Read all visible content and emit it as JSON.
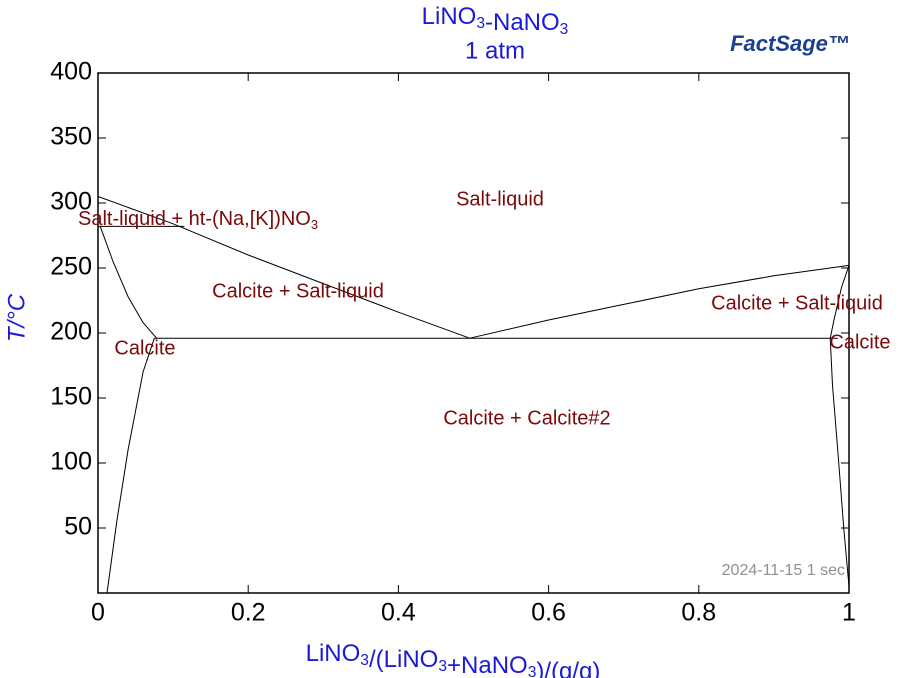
{
  "chart_data": {
    "type": "line",
    "title": "LiNO3-NaNO3",
    "subtitle": "1 atm",
    "logo": "FactSage™",
    "x_label": "LiNO3/(LiNO3+NaNO3)/(g/g)",
    "y_label": "T/°C",
    "timestamp": "2024-11-15  1 sec",
    "xlim": [
      0,
      1
    ],
    "ylim": [
      0,
      400
    ],
    "xticks": [
      0,
      0.2,
      0.4,
      0.6,
      0.8,
      1
    ],
    "yticks": [
      50,
      100,
      150,
      200,
      250,
      300,
      350,
      400
    ],
    "annotations": [
      "Salt-liquid",
      "Salt-liquid + ht-(Na,[K])NO3",
      "Calcite + Salt-liquid",
      "Calcite + Salt-liquid",
      "Calcite",
      "Calcite",
      "Calcite + Calcite#2"
    ],
    "series": [
      {
        "color": "#000000",
        "x": [
          0,
          0.1,
          0.2,
          0.3,
          0.4,
          0.495
        ],
        "values": [
          305,
          284,
          260,
          238,
          216,
          196
        ]
      },
      {
        "color": "#000000",
        "x": [
          0.495,
          0.6,
          0.7,
          0.8,
          0.9,
          1
        ],
        "values": [
          196,
          210,
          222,
          234,
          244,
          252
        ]
      },
      {
        "color": "#000000",
        "x": [
          0.075,
          0.985
        ],
        "values": [
          196,
          196
        ]
      },
      {
        "color": "#000000",
        "x": [
          0,
          0.115
        ],
        "values": [
          282,
          282
        ]
      },
      {
        "color": "#000000",
        "x": [
          0.003,
          0.02,
          0.04,
          0.06,
          0.078
        ],
        "values": [
          282,
          255,
          228,
          208,
          196
        ]
      },
      {
        "color": "#000000",
        "x": [
          0.075,
          0.06,
          0.04,
          0.025,
          0.012
        ],
        "values": [
          196,
          170,
          110,
          55,
          0
        ]
      },
      {
        "color": "#000000",
        "x": [
          1,
          0.99,
          0.98,
          0.975
        ],
        "values": [
          252,
          235,
          210,
          196
        ]
      },
      {
        "color": "#000000",
        "x": [
          0.975,
          0.978,
          0.985,
          0.993,
          1
        ],
        "values": [
          196,
          160,
          110,
          50,
          5
        ]
      }
    ]
  }
}
